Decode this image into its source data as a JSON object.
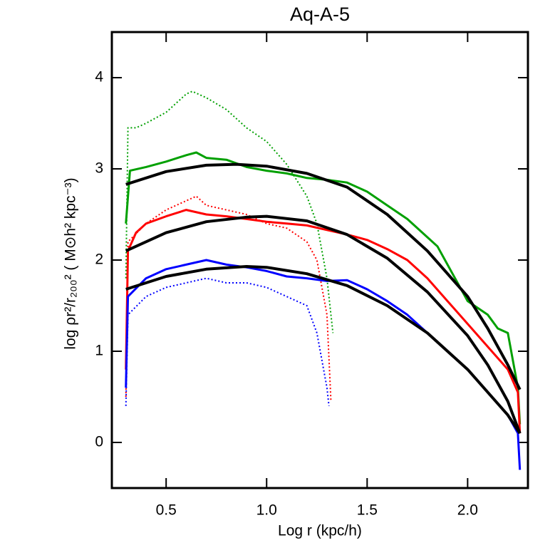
{
  "chart_data": {
    "type": "line",
    "title": "Aq-A-5",
    "xlabel": "Log r (kpc/h)",
    "ylabel": "log ρr²/r₂₀₀² ( M⊙h² kpc⁻³)",
    "xlim": [
      0.23,
      2.3
    ],
    "ylim": [
      -0.5,
      4.5
    ],
    "xticks": [
      0.5,
      {
        "value": 1.0,
        "label": "1.0"
      },
      1.5,
      {
        "value": 2.0,
        "label": "2.0"
      }
    ],
    "yticks": [
      0,
      1,
      2,
      3,
      4
    ],
    "series": [
      {
        "color": "#00a000",
        "dash": "dotted",
        "x": [
          0.3,
          0.31,
          0.35,
          0.4,
          0.5,
          0.6,
          0.63,
          0.7,
          0.8,
          0.9,
          1.0,
          1.1,
          1.2,
          1.25,
          1.3,
          1.33
        ],
        "values": [
          1.8,
          3.45,
          3.45,
          3.5,
          3.62,
          3.82,
          3.85,
          3.78,
          3.65,
          3.45,
          3.3,
          3.05,
          2.7,
          2.4,
          1.8,
          1.2
        ]
      },
      {
        "color": "#ff0000",
        "dash": "dotted",
        "x": [
          0.3,
          0.31,
          0.4,
          0.5,
          0.6,
          0.65,
          0.7,
          0.8,
          0.9,
          1.0,
          1.1,
          1.2,
          1.25,
          1.3,
          1.32
        ],
        "values": [
          0.5,
          2.2,
          2.4,
          2.55,
          2.65,
          2.7,
          2.6,
          2.55,
          2.5,
          2.4,
          2.35,
          2.2,
          2.0,
          1.4,
          0.45
        ]
      },
      {
        "color": "#0000ff",
        "dash": "dotted",
        "x": [
          0.3,
          0.31,
          0.4,
          0.5,
          0.6,
          0.7,
          0.8,
          0.9,
          1.0,
          1.1,
          1.2,
          1.25,
          1.3,
          1.31
        ],
        "values": [
          0.4,
          1.4,
          1.6,
          1.7,
          1.75,
          1.8,
          1.75,
          1.75,
          1.7,
          1.6,
          1.5,
          1.2,
          0.6,
          0.4
        ]
      },
      {
        "color": "#00a000",
        "dash": "solid",
        "x": [
          0.3,
          0.32,
          0.4,
          0.5,
          0.6,
          0.65,
          0.7,
          0.8,
          0.9,
          1.0,
          1.1,
          1.2,
          1.3,
          1.4,
          1.5,
          1.6,
          1.7,
          1.8,
          1.85,
          1.9,
          2.0,
          2.1,
          2.15,
          2.2,
          2.25,
          2.26
        ],
        "values": [
          2.4,
          2.98,
          3.02,
          3.08,
          3.15,
          3.18,
          3.12,
          3.1,
          3.02,
          2.98,
          2.95,
          2.9,
          2.88,
          2.85,
          2.75,
          2.6,
          2.45,
          2.25,
          2.15,
          1.95,
          1.55,
          1.4,
          1.25,
          1.2,
          0.6,
          0.2
        ]
      },
      {
        "color": "#ff0000",
        "dash": "solid",
        "x": [
          0.3,
          0.31,
          0.35,
          0.4,
          0.5,
          0.6,
          0.7,
          0.8,
          0.9,
          1.0,
          1.1,
          1.2,
          1.3,
          1.4,
          1.5,
          1.6,
          1.7,
          1.8,
          1.9,
          2.0,
          2.1,
          2.2,
          2.25,
          2.26
        ],
        "values": [
          0.8,
          2.1,
          2.3,
          2.4,
          2.48,
          2.55,
          2.5,
          2.48,
          2.45,
          2.42,
          2.4,
          2.38,
          2.33,
          2.28,
          2.22,
          2.12,
          2.0,
          1.8,
          1.55,
          1.3,
          1.05,
          0.8,
          0.55,
          0.1
        ]
      },
      {
        "color": "#0000ff",
        "dash": "solid",
        "x": [
          0.3,
          0.31,
          0.4,
          0.5,
          0.6,
          0.7,
          0.8,
          0.9,
          1.0,
          1.1,
          1.2,
          1.3,
          1.4,
          1.5,
          1.6,
          1.7,
          1.8,
          1.9,
          2.0,
          2.1,
          2.2,
          2.25,
          2.26
        ],
        "values": [
          0.6,
          1.6,
          1.8,
          1.9,
          1.95,
          2.0,
          1.95,
          1.92,
          1.88,
          1.82,
          1.8,
          1.77,
          1.78,
          1.68,
          1.55,
          1.4,
          1.2,
          1.0,
          0.8,
          0.55,
          0.3,
          0.1,
          -0.3
        ]
      },
      {
        "color": "#000000",
        "dash": "solid",
        "x": [
          0.3,
          0.5,
          0.7,
          0.85,
          1.0,
          1.2,
          1.4,
          1.6,
          1.8,
          2.0,
          2.1,
          2.2,
          2.26
        ],
        "values": [
          2.83,
          2.97,
          3.04,
          3.05,
          3.03,
          2.95,
          2.8,
          2.5,
          2.1,
          1.6,
          1.25,
          0.85,
          0.58
        ]
      },
      {
        "color": "#000000",
        "dash": "solid",
        "x": [
          0.3,
          0.5,
          0.7,
          0.9,
          1.0,
          1.2,
          1.4,
          1.6,
          1.8,
          2.0,
          2.1,
          2.2,
          2.26
        ],
        "values": [
          2.1,
          2.3,
          2.42,
          2.47,
          2.48,
          2.43,
          2.28,
          2.02,
          1.65,
          1.17,
          0.85,
          0.45,
          0.1
        ]
      },
      {
        "color": "#000000",
        "dash": "solid",
        "x": [
          0.3,
          0.5,
          0.7,
          0.9,
          1.0,
          1.2,
          1.4,
          1.6,
          1.8,
          2.0,
          2.2,
          2.26
        ],
        "values": [
          1.68,
          1.82,
          1.9,
          1.93,
          1.92,
          1.85,
          1.72,
          1.5,
          1.2,
          0.8,
          0.3,
          0.1
        ]
      }
    ]
  }
}
